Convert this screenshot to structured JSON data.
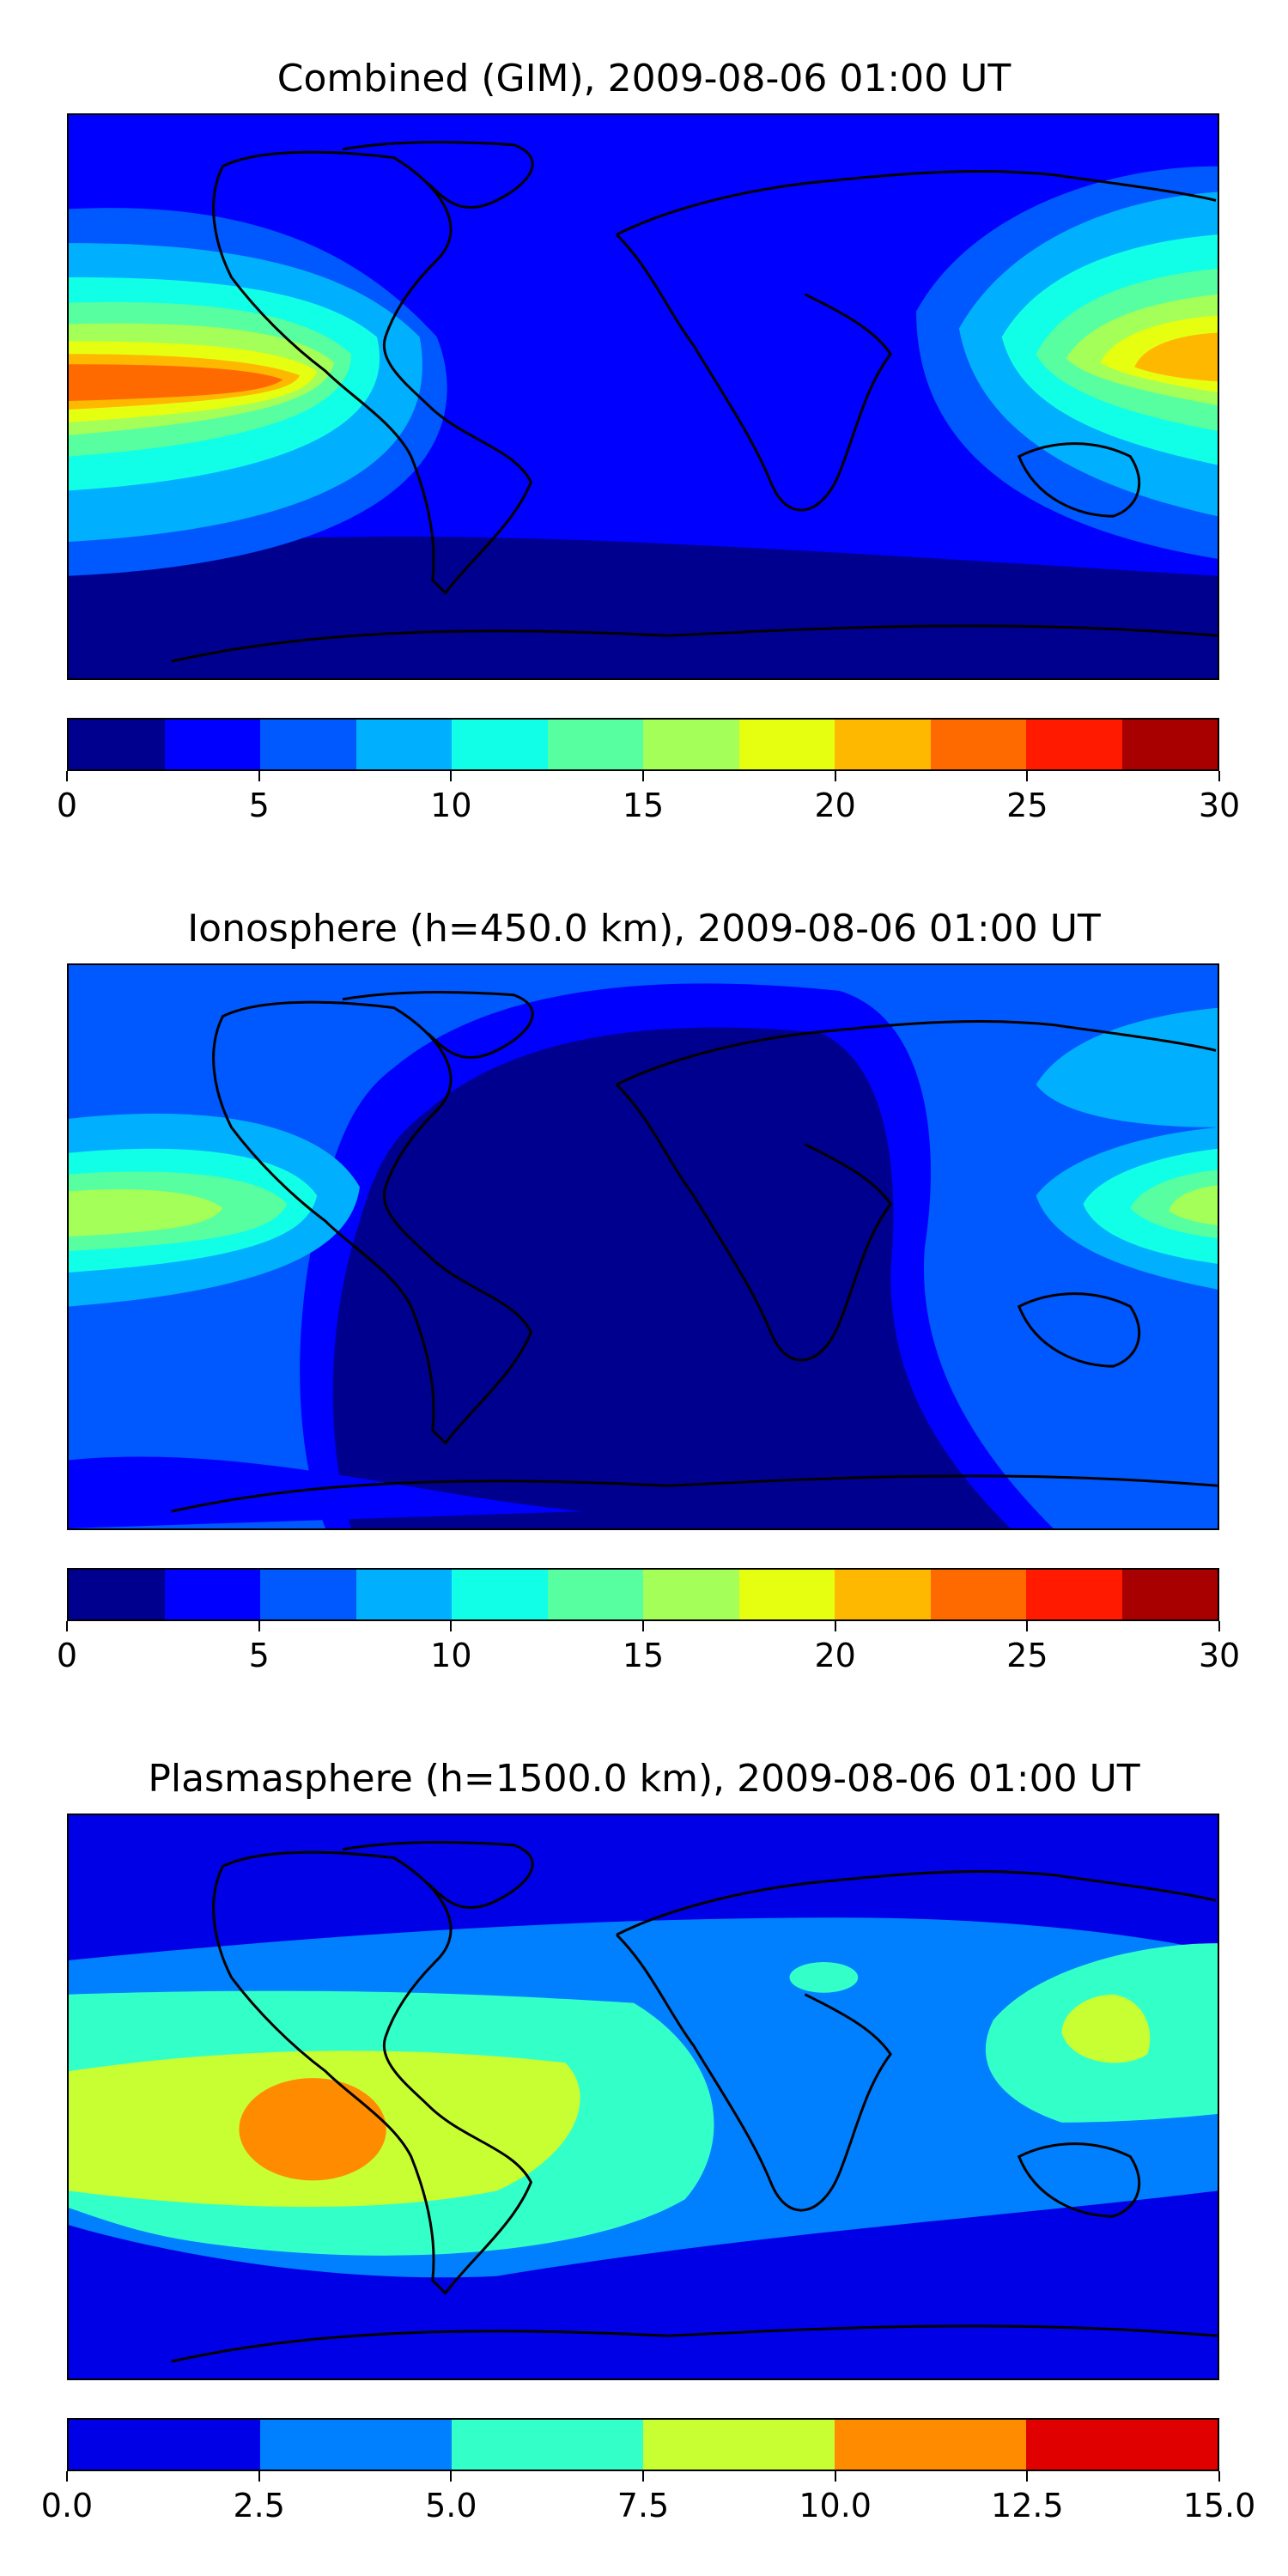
{
  "panels": [
    {
      "title": "Combined (GIM), 2009-08-06 01:00 UT",
      "colorbar": {
        "colors": [
          "#00008f",
          "#0000ff",
          "#0058ff",
          "#00b0ff",
          "#10ffe6",
          "#58ffa0",
          "#a4ff58",
          "#e6ff10",
          "#ffb800",
          "#ff6a00",
          "#ff1a00",
          "#a80000"
        ],
        "tick_labels": [
          "0",
          "5",
          "10",
          "15",
          "20",
          "25",
          "30"
        ],
        "range": [
          0,
          30
        ]
      }
    },
    {
      "title": "Ionosphere  (h=450.0 km), 2009-08-06 01:00 UT",
      "colorbar": {
        "colors": [
          "#00008f",
          "#0000ff",
          "#0058ff",
          "#00b0ff",
          "#10ffe6",
          "#58ffa0",
          "#a4ff58",
          "#e6ff10",
          "#ffb800",
          "#ff6a00",
          "#ff1a00",
          "#a80000"
        ],
        "tick_labels": [
          "0",
          "5",
          "10",
          "15",
          "20",
          "25",
          "30"
        ],
        "range": [
          0,
          30
        ]
      }
    },
    {
      "title": "Plasmasphere (h=1500.0 km), 2009-08-06 01:00 UT",
      "colorbar": {
        "colors": [
          "#0000e6",
          "#0080ff",
          "#33ffc8",
          "#c8ff33",
          "#ff8c00",
          "#e00000"
        ],
        "tick_labels": [
          "0.0",
          "2.5",
          "5.0",
          "7.5",
          "10.0",
          "12.5",
          "15.0"
        ],
        "range": [
          0,
          15
        ]
      }
    }
  ]
}
